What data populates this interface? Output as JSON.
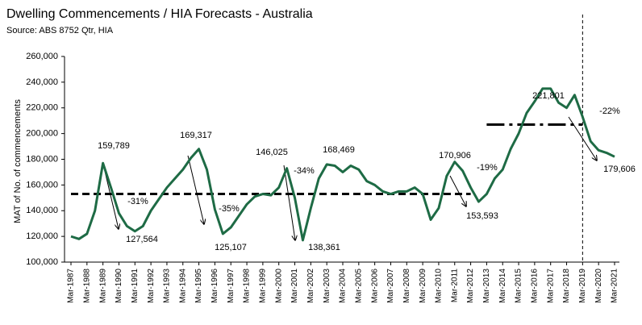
{
  "chart_data": {
    "type": "line",
    "title": "Dwelling Commencements / HIA Forecasts - Australia",
    "subtitle": "Source: ABS 8752 Qtr, HIA",
    "y_label": "MAT of No. of commencements",
    "categories": [
      "Mar-1987",
      null,
      "Mar-1988",
      null,
      "Mar-1989",
      null,
      "Mar-1990",
      null,
      "Mar-1991",
      null,
      "Mar-1992",
      null,
      "Mar-1993",
      null,
      "Mar-1994",
      null,
      "Mar-1995",
      null,
      "Mar-1996",
      null,
      "Mar-1997",
      null,
      "Mar-1998",
      null,
      "Mar-1999",
      null,
      "Mar-2000",
      null,
      "Mar-2001",
      null,
      "Mar-2002",
      null,
      "Mar-2003",
      null,
      "Mar-2004",
      null,
      "Mar-2005",
      null,
      "Mar-2006",
      null,
      "Mar-2007",
      null,
      "Mar-2008",
      null,
      "Mar-2009",
      null,
      "Mar-2010",
      null,
      "Mar-2011",
      null,
      "Mar-2012",
      null,
      "Mar-2013",
      null,
      "Mar-2014",
      null,
      "Mar-2015",
      null,
      "Mar-2016",
      null,
      "Mar-2017",
      null,
      "Mar-2018",
      null,
      "Mar-2019",
      null,
      "Mar-2020",
      null,
      "Mar-2021"
    ],
    "series": [
      {
        "color": "#1e6b45",
        "values": [
          120000,
          118000,
          122000,
          140000,
          177000,
          158000,
          138000,
          128000,
          124000,
          128000,
          140000,
          149000,
          158000,
          165000,
          172000,
          181000,
          188000,
          172000,
          141000,
          122000,
          127000,
          136000,
          145000,
          151000,
          153000,
          152000,
          158000,
          173000,
          150000,
          117000,
          142000,
          165000,
          176000,
          175000,
          170000,
          175000,
          172000,
          163000,
          160000,
          155000,
          153000,
          155000,
          155000,
          158000,
          153000,
          133000,
          142000,
          167000,
          178000,
          171000,
          158000,
          147000,
          153000,
          165000,
          172000,
          188000,
          200000,
          216000,
          225000,
          235000,
          235000,
          224000,
          220000,
          230000,
          213000,
          194000,
          187000,
          185000,
          182000
        ]
      }
    ],
    "ylim": [
      100000,
      260000
    ],
    "yticks": [
      {
        "value": 100000,
        "label": "100,000"
      },
      {
        "value": 120000,
        "label": "120,000"
      },
      {
        "value": 140000,
        "label": "140,000"
      },
      {
        "value": 160000,
        "label": "160,000"
      },
      {
        "value": 180000,
        "label": "180,000"
      },
      {
        "value": 200000,
        "label": "200,000"
      },
      {
        "value": 220000,
        "label": "220,000"
      },
      {
        "value": 240000,
        "label": "240,000"
      },
      {
        "value": 260000,
        "label": "260,000"
      }
    ],
    "reference_lines": [
      {
        "value": 153000,
        "start": "Mar-1987",
        "end": "Mar-2012",
        "style": "dashed"
      },
      {
        "value": 207000,
        "start": "Mar-2013",
        "end": "Mar-2019",
        "style": "dash-dot"
      }
    ],
    "forecast_start": "Mar-2019",
    "annotations": [
      "159,789",
      "-31%",
      "127,564",
      "169,317",
      "-35%",
      "125,107",
      "146,025",
      "-34%",
      "138,361",
      "168,469",
      "170,906",
      "153,593",
      "-19%",
      "221,801",
      "-22%",
      "179,606"
    ]
  }
}
